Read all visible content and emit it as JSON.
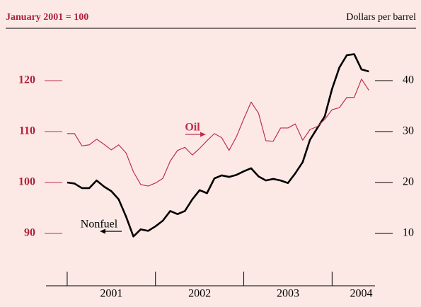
{
  "chart_data": {
    "type": "line",
    "y_label": "January 2001 = 100",
    "y2_label": "Dollars per barrel",
    "annotations": [
      "Oil",
      "Nonfuel"
    ],
    "x": [
      2001,
      2001.083,
      2001.167,
      2001.25,
      2001.333,
      2001.417,
      2001.5,
      2001.583,
      2001.667,
      2001.75,
      2001.833,
      2001.917,
      2002,
      2002.083,
      2002.167,
      2002.25,
      2002.333,
      2002.417,
      2002.5,
      2002.583,
      2002.667,
      2002.75,
      2002.833,
      2002.917,
      2003,
      2003.083,
      2003.167,
      2003.25,
      2003.333,
      2003.417,
      2003.5,
      2003.583,
      2003.667,
      2003.75,
      2003.833,
      2003.917,
      2004,
      2004.083,
      2004.167,
      2004.25,
      2004.333,
      2004.417
    ],
    "series": [
      {
        "name": "Nonfuel",
        "color": "#000000",
        "axis": "y",
        "values": [
          100,
          99.8,
          98.9,
          98.9,
          100.4,
          99.2,
          98.3,
          96.7,
          93.3,
          89.4,
          90.8,
          90.5,
          91.4,
          92.5,
          94.4,
          93.8,
          94.4,
          96.7,
          98.5,
          97.9,
          100.8,
          101.4,
          101.1,
          101.5,
          102.2,
          102.8,
          101.2,
          100.4,
          100.7,
          100.4,
          99.9,
          101.8,
          104.0,
          108.4,
          110.7,
          113.0,
          118.4,
          122.6,
          125.0,
          125.2,
          122.2,
          121.8
        ]
      },
      {
        "name": "Oil",
        "color": "#c0304a",
        "axis": "y2",
        "values": [
          29.6,
          29.6,
          27.2,
          27.4,
          28.5,
          27.5,
          26.4,
          27.4,
          25.8,
          22.1,
          19.6,
          19.3,
          19.9,
          20.8,
          24.2,
          26.3,
          26.9,
          25.4,
          26.7,
          28.2,
          29.6,
          28.8,
          26.3,
          29.0,
          32.5,
          35.8,
          33.6,
          28.2,
          28.1,
          30.7,
          30.7,
          31.5,
          28.3,
          30.4,
          31.0,
          32.4,
          34.3,
          34.7,
          36.7,
          36.7,
          40.3,
          38.1
        ]
      }
    ],
    "xlim": [
      2000.76,
      2004.486
    ],
    "xticks": [
      2001,
      2002,
      2003,
      2004
    ],
    "xlabels": [
      {
        "value": 2001.5,
        "label": "2001"
      },
      {
        "value": 2002.5,
        "label": "2002"
      },
      {
        "value": 2003.5,
        "label": "2003"
      },
      {
        "value": 2004.33,
        "label": "2004"
      }
    ],
    "ylim": [
      83,
      129
    ],
    "yticks": [
      90,
      100,
      110,
      120
    ],
    "y2lim": [
      3,
      49
    ],
    "y2ticks": [
      10,
      20,
      30,
      40
    ]
  }
}
